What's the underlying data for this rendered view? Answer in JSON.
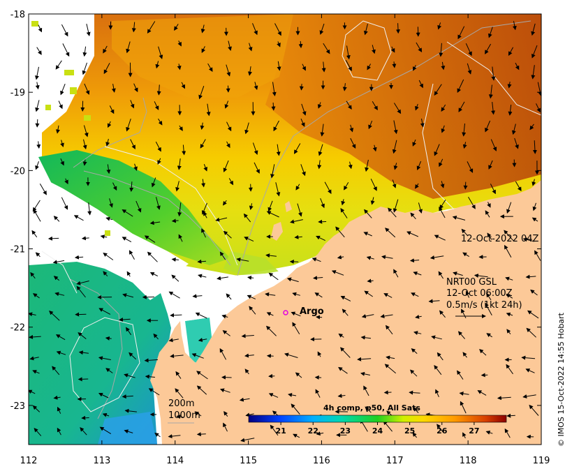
{
  "map": {
    "timestamp": "12-Oct-2022 04Z",
    "nrt_title": "NRT00 GSL",
    "nrt_time": "12-Oct 06:00Z",
    "nrt_scale": "0.5m/s (1kt 24h)",
    "argo_label": "Argo",
    "contour_200": "200m",
    "contour_1000": "1000m",
    "colorbar_title": "4h comp, p50, All Sats",
    "colorbar_ticks": [
      "21",
      "22",
      "23",
      "24",
      "25",
      "26",
      "27"
    ],
    "colorbar_range": [
      20,
      28
    ],
    "credit": "© IMOS 15-Oct-2022 14:55 Hobart",
    "lon_ticks": [
      "112",
      "113",
      "114",
      "115",
      "116",
      "117",
      "118",
      "119"
    ],
    "lat_ticks": [
      "-18",
      "-19",
      "-20",
      "-21",
      "-22",
      "-23"
    ],
    "lon_range": [
      112,
      119
    ],
    "lat_range": [
      -23.5,
      -18
    ],
    "colors": {
      "land": "#fcc998",
      "warm": "#c85a0a",
      "mid": "#f3cf00",
      "cool": "#22c36a",
      "cold": "#1aa7c8",
      "argo": "#e100e1"
    }
  }
}
